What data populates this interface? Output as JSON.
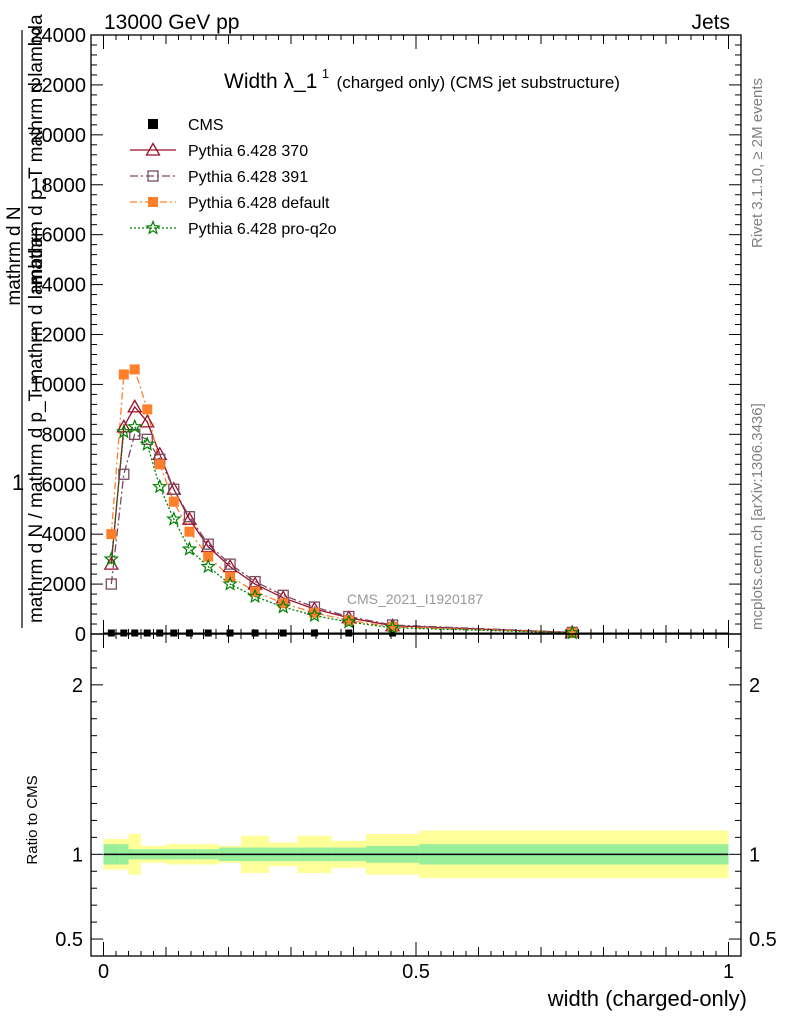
{
  "header": {
    "left": "13000 GeV pp",
    "right": "Jets"
  },
  "side_labels": {
    "rivet": "Rivet 3.1.10, ≥ 2M events",
    "mcplots": "mcplots.cern.ch [arXiv:1306.3436]"
  },
  "watermark": "CMS_2021_I1920187",
  "chart_data": {
    "type": "line",
    "title": "Width λ_1",
    "title_sup": "1",
    "title_suffix": "(charged only) (CMS jet substructure)",
    "ylabel_lines": [
      "mathrm d N",
      "mathrm d p_T mathrm d lambda",
      "mathrm d N / mathrm d p_T mathrm d lambda"
    ],
    "ylabel_prefix": "1",
    "xlabel": "width (charged-only)",
    "ratio_ylabel": "Ratio to CMS",
    "xlim": [
      -0.02,
      1.02
    ],
    "ylim": [
      0,
      24000
    ],
    "ratio_ylim": [
      0.4,
      2.3
    ],
    "yticks": [
      0,
      2000,
      4000,
      6000,
      8000,
      10000,
      12000,
      14000,
      16000,
      18000,
      20000,
      22000,
      24000
    ],
    "ytick_labels": [
      "0",
      "2000",
      "4000",
      "6000",
      "8000",
      "10000",
      "12000",
      "14000",
      "16000",
      "18000",
      "20000",
      "22000",
      "24000"
    ],
    "xticks": [
      0,
      0.5,
      1
    ],
    "xtick_labels": [
      "0",
      "0.5",
      "1"
    ],
    "ratio_yticks": [
      0.5,
      1,
      2
    ],
    "ratio_ytick_labels": [
      "0.5",
      "1",
      "2"
    ],
    "x": [
      0.0125,
      0.0325,
      0.05,
      0.07,
      0.09,
      0.1125,
      0.1375,
      0.1675,
      0.2025,
      0.2425,
      0.2875,
      0.3375,
      0.3925,
      0.4625,
      0.75
    ],
    "bins": [
      0,
      0.025,
      0.04,
      0.06,
      0.08,
      0.1,
      0.125,
      0.15,
      0.185,
      0.22,
      0.265,
      0.31,
      0.365,
      0.42,
      0.505,
      1.0
    ],
    "series": [
      {
        "name": "CMS",
        "color": "#000000",
        "marker": "filled-square",
        "dash": "none",
        "values": [
          40,
          40,
          40,
          40,
          40,
          40,
          40,
          40,
          40,
          40,
          40,
          40,
          40,
          40,
          40
        ]
      },
      {
        "name": "Pythia 6.428 370",
        "color": "#99102a",
        "marker": "open-triangle",
        "dash": "none",
        "values": [
          2800,
          8300,
          9100,
          8500,
          7200,
          5800,
          4600,
          3500,
          2700,
          2000,
          1450,
          1000,
          650,
          330,
          60
        ]
      },
      {
        "name": "Pythia 6.428 391",
        "color": "#7a4a60",
        "marker": "open-square",
        "dash": "8,3,2,3",
        "values": [
          2000,
          6400,
          8000,
          7800,
          7000,
          5800,
          4700,
          3600,
          2800,
          2100,
          1550,
          1080,
          700,
          360,
          65
        ]
      },
      {
        "name": "Pythia 6.428 default",
        "color": "#ff7f2a",
        "marker": "filled-square",
        "dash": "7,3,2,3",
        "values": [
          4000,
          10400,
          10600,
          9000,
          6800,
          5300,
          4100,
          3100,
          2300,
          1700,
          1230,
          850,
          550,
          280,
          50
        ]
      },
      {
        "name": "Pythia 6.428 pro-q2o",
        "color": "#008000",
        "marker": "star",
        "dash": "2,2",
        "values": [
          3000,
          8100,
          8300,
          7600,
          5900,
          4600,
          3400,
          2700,
          2000,
          1500,
          1080,
          740,
          480,
          250,
          45
        ]
      }
    ],
    "ratio_band_inner": [
      0.06,
      0.06,
      0.03,
      0.03,
      0.03,
      0.03,
      0.03,
      0.03,
      0.04,
      0.04,
      0.04,
      0.04,
      0.04,
      0.05,
      0.06,
      0.06
    ],
    "ratio_band_outer": [
      0.09,
      0.09,
      0.12,
      0.05,
      0.05,
      0.06,
      0.06,
      0.06,
      0.05,
      0.11,
      0.07,
      0.11,
      0.08,
      0.12,
      0.14,
      0.14
    ],
    "legend_position": "top-left"
  }
}
